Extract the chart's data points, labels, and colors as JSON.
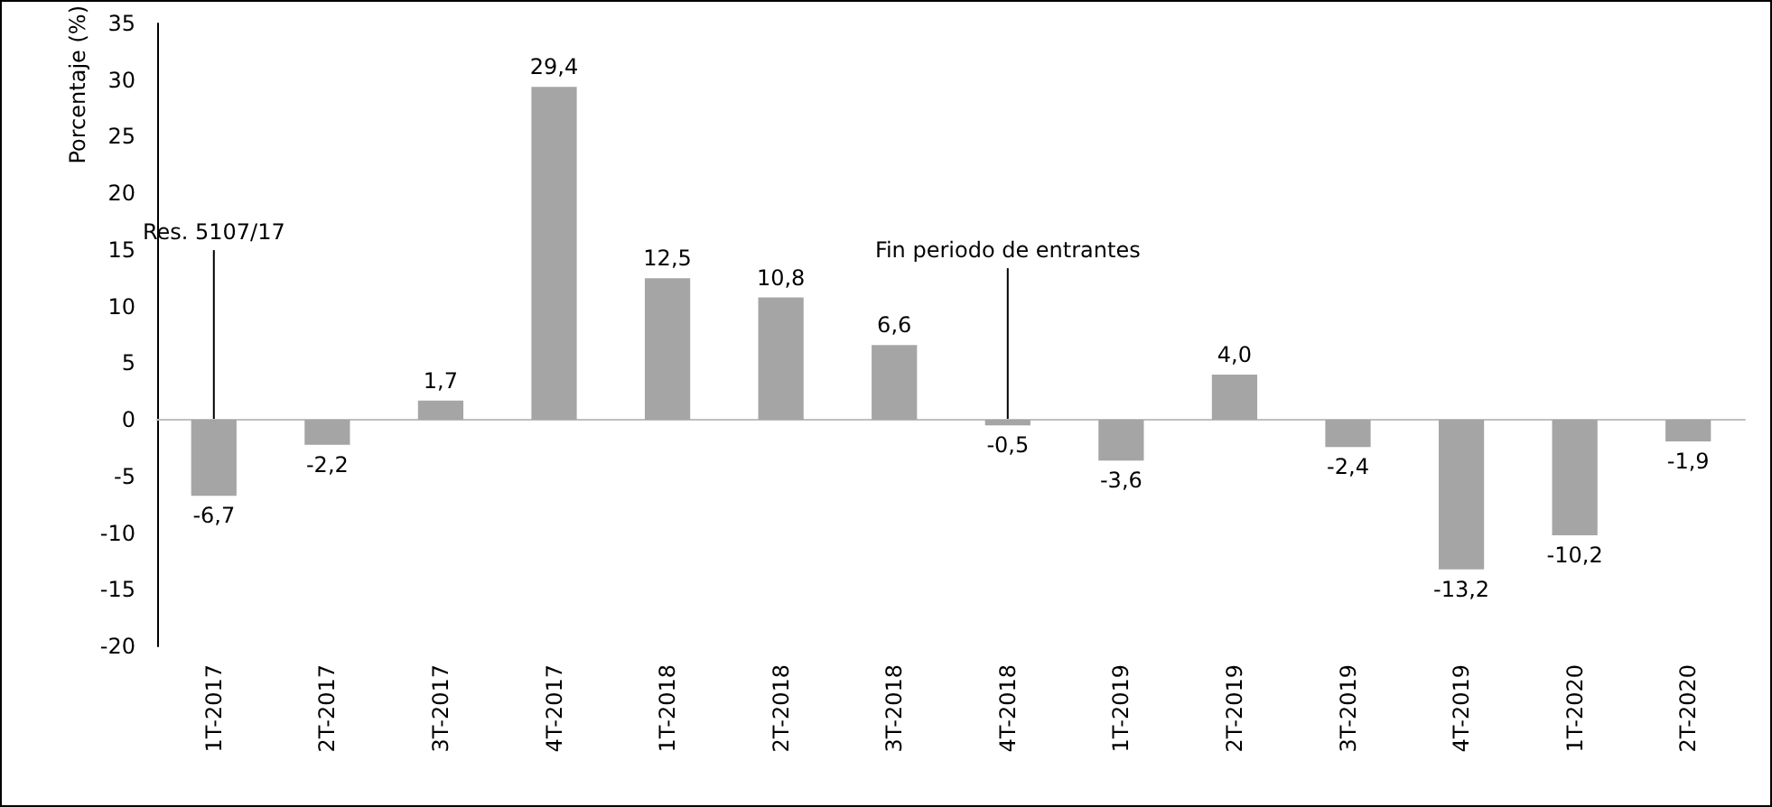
{
  "chart_data": {
    "type": "bar",
    "ylabel": "Porcentaje (%)",
    "categories": [
      "1T-2017",
      "2T-2017",
      "3T-2017",
      "4T-2017",
      "1T-2018",
      "2T-2018",
      "3T-2018",
      "4T-2018",
      "1T-2019",
      "2T-2019",
      "3T-2019",
      "4T-2019",
      "1T-2020",
      "2T-2020"
    ],
    "values": [
      -6.7,
      -2.2,
      1.7,
      29.4,
      12.5,
      10.8,
      6.6,
      -0.5,
      -3.6,
      4.0,
      -2.4,
      -13.2,
      -10.2,
      -1.9
    ],
    "value_labels": [
      "-6,7",
      "-2,2",
      "1,7",
      "29,4",
      "12,5",
      "10,8",
      "6,6",
      "-0,5",
      "-3,6",
      "4,0",
      "-2,4",
      "-13,2",
      "-10,2",
      "-1,9"
    ],
    "color": "#a5a5a5",
    "ylim": [
      -20,
      35
    ],
    "yticks": [
      -20,
      -15,
      -10,
      -5,
      0,
      5,
      10,
      15,
      20,
      25,
      30,
      35
    ],
    "annotations": [
      {
        "text": "Res. 5107/17",
        "x": "1T-2017"
      },
      {
        "text": "Fin periodo de entrantes",
        "x": "4T-2018"
      }
    ]
  }
}
